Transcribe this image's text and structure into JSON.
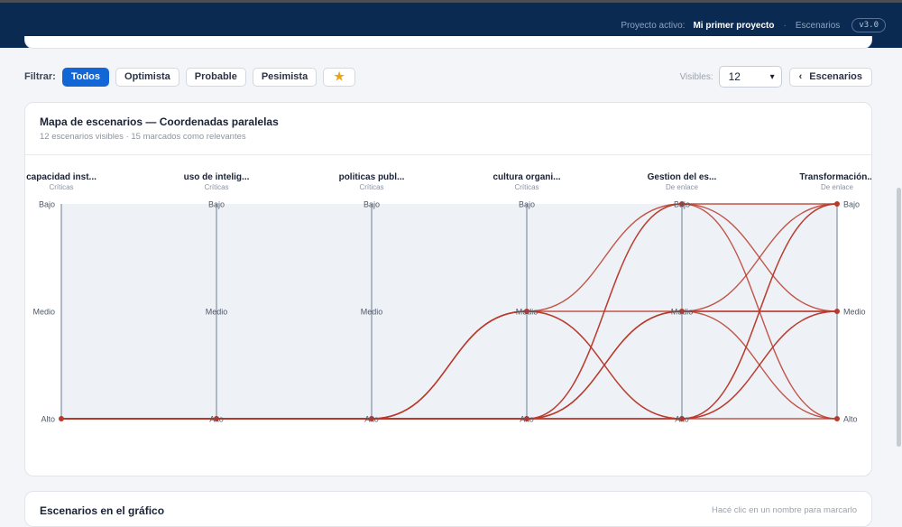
{
  "topbar": {
    "active_label": "Proyecto activo:",
    "project_name": "Mi primer proyecto",
    "separator": "·",
    "section": "Escenarios",
    "version": "v3.0"
  },
  "filter": {
    "label": "Filtrar:",
    "chips": [
      "Todos",
      "Optimista",
      "Probable",
      "Pesimista"
    ],
    "active_chip": "Todos",
    "star": "★",
    "visible_label": "Visibles:",
    "visible_value": "12",
    "back_icon": "‹",
    "back_label": "Escenarios"
  },
  "map": {
    "title": "Mapa de escenarios — Coordenadas paralelas",
    "subtitle": "12 escenarios visibles · 15 marcados como relevantes"
  },
  "chart_data": {
    "type": "parallel-coordinates",
    "axes": [
      {
        "name": "capacidad inst...",
        "group": "Críticas"
      },
      {
        "name": "uso de intelig...",
        "group": "Críticas"
      },
      {
        "name": "politicas publ...",
        "group": "Críticas"
      },
      {
        "name": "cultura organi...",
        "group": "Críticas"
      },
      {
        "name": "Gestion del es...",
        "group": "De enlace"
      },
      {
        "name": "Transformación...",
        "group": "De enlace"
      }
    ],
    "levels": [
      "Bajo",
      "Medio",
      "Alto"
    ],
    "series": [
      {
        "values": [
          "Alto",
          "Alto",
          "Alto",
          "Alto",
          "Alto",
          "Alto"
        ]
      },
      {
        "values": [
          "Alto",
          "Alto",
          "Alto",
          "Alto",
          "Alto",
          "Medio"
        ]
      },
      {
        "values": [
          "Alto",
          "Alto",
          "Alto",
          "Alto",
          "Alto",
          "Bajo"
        ]
      },
      {
        "values": [
          "Alto",
          "Alto",
          "Alto",
          "Alto",
          "Medio",
          "Alto"
        ]
      },
      {
        "values": [
          "Alto",
          "Alto",
          "Alto",
          "Alto",
          "Medio",
          "Bajo"
        ]
      },
      {
        "values": [
          "Alto",
          "Alto",
          "Alto",
          "Alto",
          "Bajo",
          "Medio"
        ]
      },
      {
        "values": [
          "Alto",
          "Alto",
          "Alto",
          "Medio",
          "Alto",
          "Bajo"
        ]
      },
      {
        "values": [
          "Alto",
          "Alto",
          "Alto",
          "Medio",
          "Alto",
          "Medio"
        ]
      },
      {
        "values": [
          "Alto",
          "Alto",
          "Alto",
          "Medio",
          "Bajo",
          "Alto"
        ]
      },
      {
        "values": [
          "Alto",
          "Alto",
          "Alto",
          "Medio",
          "Medio",
          "Medio"
        ]
      },
      {
        "values": [
          "Alto",
          "Alto",
          "Alto",
          "Alto",
          "Bajo",
          "Bajo"
        ]
      },
      {
        "values": [
          "Alto",
          "Alto",
          "Alto",
          "Alto",
          "Medio",
          "Medio"
        ]
      }
    ],
    "line_color": "#b93a2c",
    "axis_color": "#8a98a8",
    "band_color": "#eef2f7"
  },
  "bottom_card": {
    "title": "Escenarios en el gráfico",
    "hint": "Hacé clic en un nombre para marcarlo"
  },
  "colors": {
    "topbar": "#0b2a52",
    "accent": "#1366d6",
    "star": "#e8a617"
  }
}
